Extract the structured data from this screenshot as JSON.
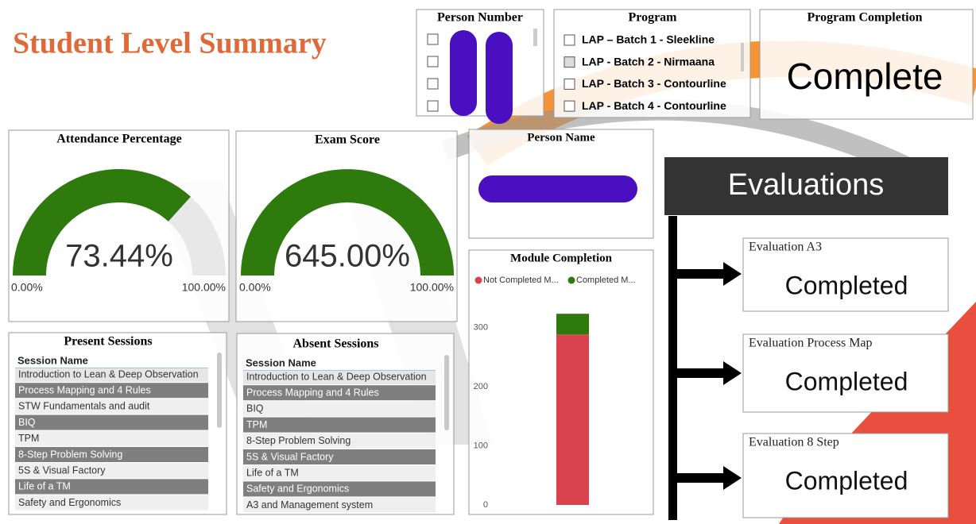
{
  "header": {
    "title": "Student Level Summary"
  },
  "person_number": {
    "title": "Person Number"
  },
  "program": {
    "title": "Program",
    "items": [
      "LAP – Batch 1 - Sleekline",
      "LAP - Batch 2 - Nirmaana",
      "LAP - Batch 3 - Contourline",
      "LAP - Batch 4 - Contourline"
    ]
  },
  "program_completion": {
    "title": "Program Completion",
    "value": "Complete"
  },
  "gauges": [
    {
      "title": "Attendance Percentage",
      "value": {
        "value": 73.44,
        "label": "73.44%"
      },
      "min": {
        "value": 0,
        "label": "0.00%"
      },
      "max": {
        "value": 100,
        "label": "100.00%"
      },
      "color": "#2e7a0c"
    },
    {
      "title": "Exam Score",
      "value": {
        "value": 645,
        "label": "645.00%"
      },
      "min": {
        "value": 0,
        "label": "0.00%"
      },
      "max": {
        "value": 100,
        "label": "100.00%"
      },
      "color": "#2e7a0c"
    }
  ],
  "person_name": {
    "title": "Person Name"
  },
  "module_completion": {
    "type": "bar",
    "stacked": true,
    "title": "Module Completion",
    "categories": [
      null
    ],
    "series": [
      {
        "name": "Not Completed M...",
        "color": "#d9434e",
        "values": [
          288
        ]
      },
      {
        "name": "Completed M...",
        "color": "#2e7a0c",
        "values": [
          35
        ]
      }
    ],
    "ylim": [
      0,
      330
    ],
    "yticks": [
      0,
      100,
      200,
      300
    ]
  },
  "tables": [
    {
      "title": "Present Sessions",
      "header": "Session Name",
      "rows": [
        "Introduction to Lean & Deep Observation",
        "Process Mapping and 4 Rules",
        "STW Fundamentals and audit",
        "BIQ",
        "TPM",
        "8-Step Problem Solving",
        "5S & Visual Factory",
        "Life of a TM",
        "Safety and Ergonomics"
      ]
    },
    {
      "title": "Absent Sessions",
      "header": "Session Name",
      "rows": [
        "Introduction to Lean & Deep Observation",
        "Process Mapping and 4 Rules",
        "BIQ",
        "TPM",
        "8-Step Problem Solving",
        "5S & Visual Factory",
        "Life of a TM",
        "Safety and Ergonomics",
        "A3 and Management system"
      ]
    }
  ],
  "evaluations": {
    "title": "Evaluations",
    "items": [
      {
        "name": "Evaluation A3",
        "status": "Completed"
      },
      {
        "name": "Evaluation Process Map",
        "status": "Completed"
      },
      {
        "name": "Evaluation 8 Step",
        "status": "Completed"
      }
    ]
  }
}
